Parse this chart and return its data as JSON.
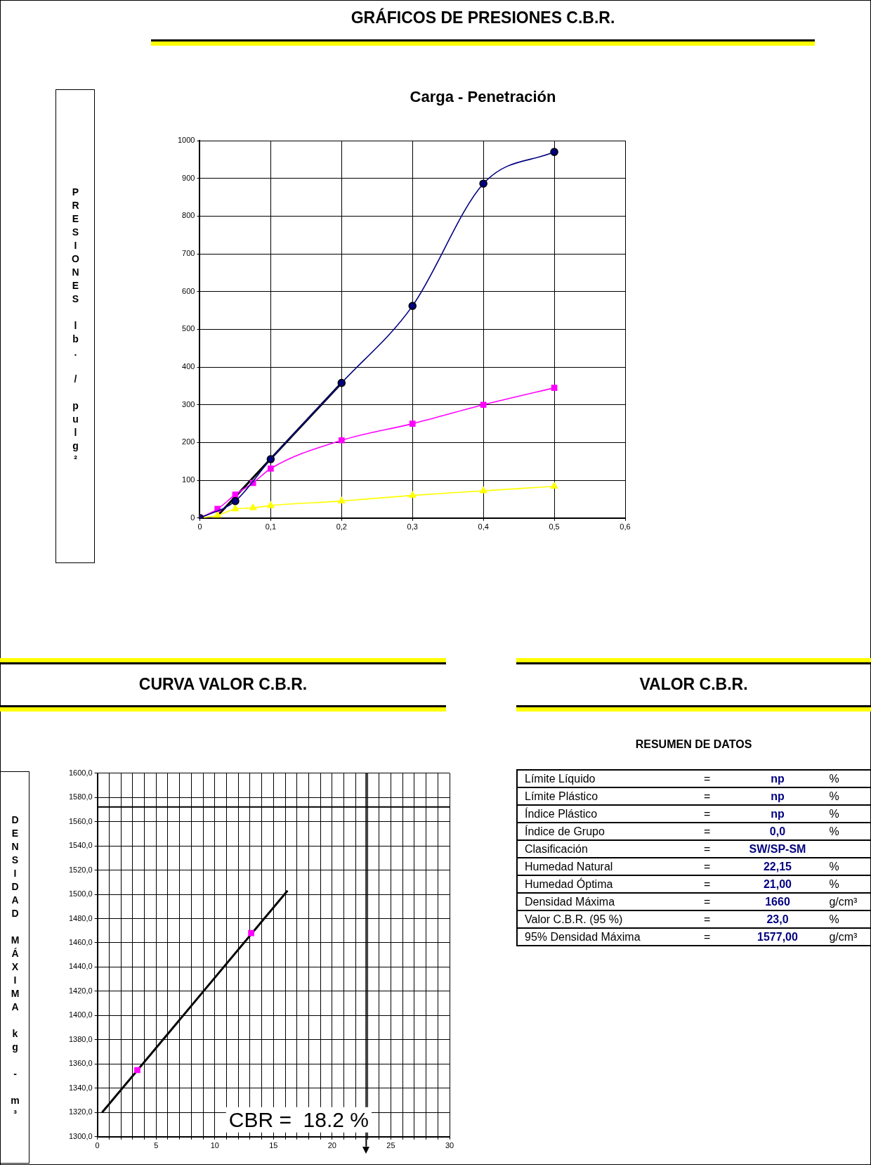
{
  "chart_data": [
    {
      "type": "line",
      "title": "GRÁFICOS DE PRESIONES C.B.R.",
      "subtitle": "Carga - Penetración",
      "ylabel": "PRESIONES lb. / pulg²",
      "grid": true,
      "legend": false,
      "xlim": [
        0,
        0.6
      ],
      "xticks": [
        0,
        {
          "value": 0.1,
          "label": "0,1"
        },
        {
          "value": 0.2,
          "label": "0,2"
        },
        {
          "value": 0.3,
          "label": "0,3"
        },
        {
          "value": 0.4,
          "label": "0,4"
        },
        {
          "value": 0.5,
          "label": "0,5"
        },
        {
          "value": 0.6,
          "label": "0,6"
        }
      ],
      "ylim": [
        0,
        1000
      ],
      "yticks": [
        0,
        100,
        200,
        300,
        400,
        500,
        600,
        700,
        800,
        900,
        1000
      ],
      "series": [
        {
          "type": "line",
          "color": "#000080",
          "marker": "circle",
          "x": [
            0,
            0.05,
            0.1,
            0.2,
            0.3,
            0.4,
            0.5
          ],
          "values": [
            0,
            45,
            156,
            358,
            562,
            886,
            970
          ]
        },
        {
          "type": "line",
          "color": "#ff00ff",
          "marker": "square",
          "x": [
            0,
            0.025,
            0.05,
            0.075,
            0.1,
            0.2,
            0.3,
            0.4,
            0.5
          ],
          "values": [
            0,
            24,
            62,
            93,
            131,
            206,
            250,
            300,
            345
          ]
        },
        {
          "type": "line",
          "color": "#ffff00",
          "marker": "triangle",
          "x": [
            0,
            0.025,
            0.05,
            0.075,
            0.1,
            0.2,
            0.3,
            0.4,
            0.5
          ],
          "values": [
            0,
            7,
            24,
            27,
            33,
            45,
            60,
            72,
            84
          ]
        },
        {
          "type": "line",
          "color": "#000000",
          "marker": "none",
          "x": [
            0.022,
            0.2
          ],
          "values": [
            0,
            358
          ]
        }
      ]
    },
    {
      "type": "scatter",
      "title": "CURVA VALOR C.B.R.",
      "ylabel": "DENSIDAD MÁXIMA kg - m³",
      "grid": true,
      "legend": false,
      "xlim": [
        0,
        30
      ],
      "xticks": [
        0,
        {
          "value": 1,
          "label": null
        },
        {
          "value": 2,
          "label": null
        },
        {
          "value": 3,
          "label": null
        },
        {
          "value": 4,
          "label": null
        },
        5,
        {
          "value": 6,
          "label": null
        },
        {
          "value": 7,
          "label": null
        },
        {
          "value": 8,
          "label": null
        },
        {
          "value": 9,
          "label": null
        },
        10,
        {
          "value": 11,
          "label": null
        },
        {
          "value": 12,
          "label": null
        },
        {
          "value": 13,
          "label": null
        },
        {
          "value": 14,
          "label": null
        },
        15,
        {
          "value": 16,
          "label": null
        },
        {
          "value": 17,
          "label": null
        },
        {
          "value": 18,
          "label": null
        },
        {
          "value": 19,
          "label": null
        },
        20,
        {
          "value": 21,
          "label": null
        },
        {
          "value": 22,
          "label": null
        },
        {
          "value": 23,
          "label": null
        },
        {
          "value": 24,
          "label": null
        },
        25,
        {
          "value": 26,
          "label": null
        },
        {
          "value": 27,
          "label": null
        },
        {
          "value": 28,
          "label": null
        },
        {
          "value": 29,
          "label": null
        },
        30
      ],
      "ylim": [
        1300,
        1600
      ],
      "yticks": [
        {
          "value": 1300,
          "label": "1300,0"
        },
        {
          "value": 1320,
          "label": "1320,0"
        },
        {
          "value": 1340,
          "label": "1340,0"
        },
        {
          "value": 1360,
          "label": "1360,0"
        },
        {
          "value": 1380,
          "label": "1380,0"
        },
        {
          "value": 1400,
          "label": "1400,0"
        },
        {
          "value": 1420,
          "label": "1420,0"
        },
        {
          "value": 1440,
          "label": "1440,0"
        },
        {
          "value": 1460,
          "label": "1460,0"
        },
        {
          "value": 1480,
          "label": "1480,0"
        },
        {
          "value": 1500,
          "label": "1500,0"
        },
        {
          "value": 1520,
          "label": "1520,0"
        },
        {
          "value": 1540,
          "label": "1540,0"
        },
        {
          "value": 1560,
          "label": "1560,0"
        },
        {
          "value": 1580,
          "label": "1580,0"
        },
        {
          "value": 1600,
          "label": "1600,0"
        }
      ],
      "series": [
        {
          "type": "scatter",
          "color": "#ff00ff",
          "marker": "square",
          "x": [
            3.4,
            13.1
          ],
          "values": [
            1355,
            1468
          ]
        },
        {
          "type": "line",
          "color": "#000000",
          "marker": "none",
          "x": [
            0.4,
            16.2
          ],
          "values": [
            1320,
            1503
          ]
        }
      ],
      "ref_lines": [
        {
          "axis": "y",
          "value": 1572,
          "color": "#000000"
        },
        {
          "axis": "x",
          "value": 22.9,
          "color": "#000000"
        }
      ],
      "annotations": [
        "CBR =  18.2 %"
      ]
    },
    {
      "type": "other",
      "title": "VALOR C.B.R.",
      "subtitle": "RESUMEN DE DATOS",
      "cell_labels": [
        [
          "Límite Líquido",
          "=",
          "np",
          "%"
        ],
        [
          "Límite Plástico",
          "=",
          "np",
          "%"
        ],
        [
          "Índice Plástico",
          "=",
          "np",
          "%"
        ],
        [
          "Índice de Grupo",
          "=",
          "0,0",
          "%"
        ],
        [
          "Clasificación",
          "=",
          "SW/SP-SM",
          null
        ],
        [
          "Humedad Natural",
          "=",
          "22,15",
          "%"
        ],
        [
          "Humedad Óptima",
          "=",
          "21,00",
          "%"
        ],
        [
          "Densidad Máxima",
          "=",
          "1660",
          "g/cm³"
        ],
        [
          "Valor C.B.R. (95 %)",
          "=",
          "23,0",
          "%"
        ],
        [
          "95% Densidad Máxima",
          "=",
          "1577,00",
          "g/cm³"
        ]
      ]
    }
  ]
}
